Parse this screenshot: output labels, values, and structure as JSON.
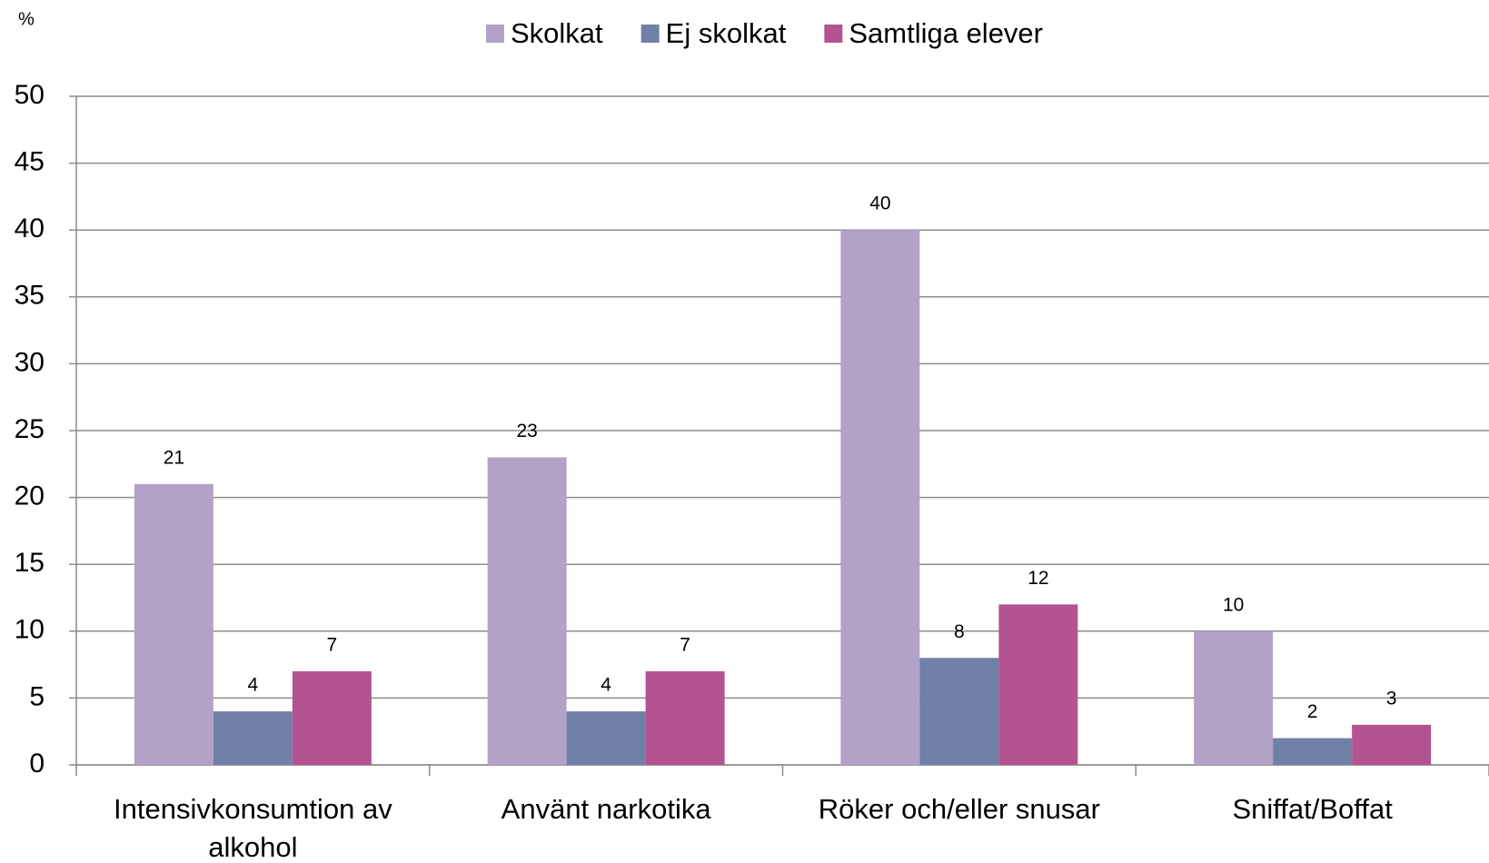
{
  "chart_data": {
    "type": "bar",
    "y_label": "%",
    "categories": [
      "Intensivkonsumtion av alkohol",
      "Använt narkotika",
      "Röker och/eller snusar",
      "Sniffat/Boffat"
    ],
    "series": [
      {
        "name": "Skolkat",
        "color": "#b3a2c7",
        "values": [
          21,
          23,
          40,
          10
        ]
      },
      {
        "name": "Ej skolkat",
        "color": "#7180a7",
        "values": [
          4,
          4,
          8,
          2
        ]
      },
      {
        "name": "Samtliga elever",
        "color": "#b45391",
        "values": [
          7,
          7,
          12,
          3
        ]
      }
    ],
    "ylim": [
      0,
      50
    ],
    "yticks": [
      0,
      5,
      10,
      15,
      20,
      25,
      30,
      35,
      40,
      45,
      50
    ],
    "grid": true,
    "legend": "top"
  }
}
